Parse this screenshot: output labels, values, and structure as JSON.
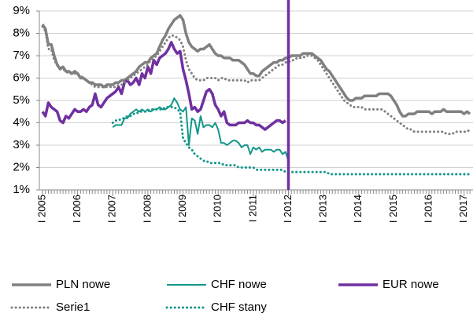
{
  "chart_data": {
    "type": "line",
    "categories": [
      "I 2005",
      null,
      null,
      null,
      null,
      null,
      null,
      null,
      null,
      null,
      null,
      null,
      "I 2006",
      null,
      null,
      null,
      null,
      null,
      null,
      null,
      null,
      null,
      null,
      null,
      "I 2007",
      null,
      null,
      null,
      null,
      null,
      null,
      null,
      null,
      null,
      null,
      null,
      "I 2008",
      null,
      null,
      null,
      null,
      null,
      null,
      null,
      null,
      null,
      null,
      null,
      "I 2009",
      null,
      null,
      null,
      null,
      null,
      null,
      null,
      null,
      null,
      null,
      null,
      "I 2010",
      null,
      null,
      null,
      null,
      null,
      null,
      null,
      null,
      null,
      null,
      null,
      "I 2011",
      null,
      null,
      null,
      null,
      null,
      null,
      null,
      null,
      null,
      null,
      null,
      "I 2012",
      null,
      null,
      null,
      null,
      null,
      null,
      null,
      null,
      null,
      null,
      null,
      "I 2013",
      null,
      null,
      null,
      null,
      null,
      null,
      null,
      null,
      null,
      null,
      null,
      "I 2014",
      null,
      null,
      null,
      null,
      null,
      null,
      null,
      null,
      null,
      null,
      null,
      "I 2015",
      null,
      null,
      null,
      null,
      null,
      null,
      null,
      null,
      null,
      null,
      null,
      "I 2016",
      null,
      null,
      null,
      null,
      null,
      null,
      null,
      null,
      null,
      null,
      null,
      "I 2017",
      null,
      null
    ],
    "series": [
      {
        "name": "PLN nowe",
        "color": "#808080",
        "width": 3.5,
        "style": "solid",
        "values": [
          8.4,
          8.2,
          7.5,
          7.5,
          7.0,
          6.6,
          6.4,
          6.5,
          6.3,
          6.3,
          6.2,
          6.3,
          6.2,
          6.0,
          6.0,
          5.9,
          5.8,
          5.8,
          5.7,
          5.7,
          5.7,
          5.6,
          5.7,
          5.7,
          5.7,
          5.8,
          5.8,
          5.9,
          5.9,
          6.0,
          6.1,
          6.2,
          6.3,
          6.5,
          6.6,
          6.7,
          6.7,
          6.9,
          7.0,
          7.1,
          7.4,
          7.7,
          7.9,
          8.2,
          8.4,
          8.6,
          8.7,
          8.8,
          8.6,
          8.0,
          7.6,
          7.4,
          7.3,
          7.2,
          7.3,
          7.3,
          7.4,
          7.5,
          7.3,
          7.1,
          7.0,
          7.0,
          6.9,
          6.9,
          6.9,
          6.8,
          6.8,
          6.8,
          6.7,
          6.6,
          6.4,
          6.2,
          6.2,
          6.1,
          6.1,
          6.3,
          6.4,
          6.5,
          6.6,
          6.7,
          6.7,
          6.8,
          6.8,
          6.9,
          6.9,
          7.0,
          7.0,
          7.0,
          7.0,
          7.1,
          7.1,
          7.1,
          7.1,
          7.0,
          6.9,
          6.8,
          6.6,
          6.4,
          6.3,
          6.1,
          5.9,
          5.7,
          5.5,
          5.3,
          5.1,
          5.0,
          5.0,
          5.1,
          5.1,
          5.1,
          5.2,
          5.2,
          5.2,
          5.2,
          5.2,
          5.3,
          5.3,
          5.3,
          5.3,
          5.2,
          5.0,
          4.8,
          4.5,
          4.3,
          4.3,
          4.4,
          4.4,
          4.4,
          4.5,
          4.5,
          4.5,
          4.5,
          4.5,
          4.4,
          4.5,
          4.5,
          4.5,
          4.6,
          4.5,
          4.5,
          4.5,
          4.5,
          4.5,
          4.5,
          4.4,
          4.5,
          4.4
        ]
      },
      {
        "name": "CHF nowe",
        "color": "#12978a",
        "width": 2,
        "style": "solid",
        "values": [
          null,
          null,
          null,
          null,
          null,
          null,
          null,
          null,
          null,
          null,
          null,
          null,
          null,
          null,
          null,
          null,
          null,
          null,
          null,
          null,
          null,
          null,
          null,
          null,
          3.8,
          3.9,
          3.9,
          3.9,
          4.2,
          4.2,
          4.4,
          4.5,
          4.6,
          4.5,
          4.6,
          4.5,
          4.6,
          4.5,
          4.6,
          4.6,
          4.7,
          4.6,
          4.6,
          4.7,
          4.8,
          5.1,
          4.9,
          4.6,
          4.5,
          4.7,
          3.0,
          4.2,
          4.1,
          3.5,
          4.3,
          3.8,
          3.9,
          3.9,
          3.8,
          4.0,
          3.7,
          3.1,
          3.1,
          3.0,
          3.1,
          3.2,
          3.2,
          3.1,
          2.9,
          3.0,
          3.0,
          2.6,
          2.9,
          2.8,
          2.9,
          2.7,
          2.8,
          2.8,
          2.8,
          2.7,
          2.8,
          2.8,
          2.6,
          2.7,
          2.3,
          null,
          null,
          null,
          null,
          null,
          null,
          null,
          null,
          null,
          null,
          null,
          null,
          null,
          null,
          null,
          null,
          null,
          null,
          null,
          null,
          null,
          null,
          null,
          null,
          null,
          null,
          null,
          null,
          null,
          null,
          null,
          null,
          null,
          null,
          null,
          null,
          null,
          null,
          null,
          null,
          null,
          null,
          null,
          null,
          null,
          null,
          null,
          null,
          null,
          null,
          null,
          null,
          null,
          null,
          null,
          null,
          null,
          null,
          null,
          null,
          null,
          null
        ]
      },
      {
        "name": "EUR nowe",
        "color": "#7030a0",
        "width": 3.5,
        "style": "solid",
        "values": [
          4.5,
          4.3,
          4.9,
          4.7,
          4.6,
          4.5,
          4.1,
          4.0,
          4.3,
          4.2,
          4.4,
          4.6,
          4.5,
          4.5,
          4.6,
          4.5,
          4.7,
          4.8,
          5.3,
          4.8,
          4.7,
          4.9,
          5.1,
          5.2,
          5.3,
          5.4,
          5.6,
          5.3,
          5.8,
          5.9,
          5.7,
          5.8,
          6.0,
          5.7,
          6.2,
          6.0,
          6.5,
          6.2,
          6.8,
          6.6,
          6.9,
          7.0,
          7.1,
          7.3,
          7.6,
          7.3,
          7.1,
          7.2,
          6.4,
          5.9,
          5.3,
          4.6,
          4.7,
          4.5,
          4.6,
          5.0,
          5.4,
          5.5,
          5.3,
          4.8,
          4.6,
          4.3,
          4.5,
          4.0,
          3.9,
          3.9,
          3.9,
          4.0,
          4.0,
          4.0,
          4.1,
          4.0,
          4.0,
          3.9,
          3.9,
          3.8,
          3.7,
          3.8,
          3.9,
          4.0,
          4.1,
          4.1,
          4.0,
          4.1,
          null,
          null,
          null,
          null,
          null,
          null,
          null,
          null,
          null,
          null,
          null,
          null,
          null,
          null,
          null,
          null,
          null,
          null,
          null,
          null,
          null,
          null,
          null,
          null,
          null,
          null,
          null,
          null,
          null,
          null,
          null,
          null,
          null,
          null,
          null,
          null,
          null,
          null,
          null,
          null,
          null,
          null,
          null,
          null,
          null,
          null,
          null,
          null,
          null,
          null,
          null,
          null,
          null,
          null,
          null,
          null,
          null,
          null,
          null,
          null,
          null,
          null,
          null
        ]
      },
      {
        "name": "Serie1",
        "color": "#808080",
        "width": 3,
        "style": "dotted",
        "values": [
          8.3,
          8.1,
          7.3,
          7.3,
          6.8,
          6.6,
          6.5,
          6.4,
          6.3,
          6.2,
          6.2,
          6.2,
          6.2,
          6.1,
          6.0,
          5.9,
          5.8,
          5.7,
          5.6,
          5.6,
          5.6,
          5.6,
          5.6,
          5.6,
          5.6,
          5.6,
          5.7,
          5.7,
          5.8,
          5.9,
          6.0,
          6.1,
          6.2,
          6.3,
          6.4,
          6.5,
          6.6,
          6.8,
          6.9,
          7.0,
          7.2,
          7.4,
          7.6,
          7.8,
          7.9,
          7.9,
          7.8,
          7.7,
          7.4,
          6.8,
          6.4,
          6.2,
          6.0,
          5.9,
          5.9,
          5.9,
          6.0,
          6.0,
          6.0,
          6.0,
          5.9,
          6.0,
          6.0,
          5.9,
          5.9,
          5.9,
          5.9,
          5.9,
          5.9,
          5.9,
          5.8,
          5.9,
          5.9,
          5.9,
          5.9,
          6.0,
          6.1,
          6.2,
          6.3,
          6.4,
          6.5,
          6.6,
          6.6,
          6.7,
          6.7,
          6.8,
          6.8,
          6.9,
          6.9,
          6.9,
          7.0,
          7.0,
          7.0,
          6.9,
          6.8,
          6.6,
          6.4,
          6.2,
          6.0,
          5.8,
          5.6,
          5.4,
          5.2,
          5.0,
          4.9,
          4.8,
          4.7,
          4.7,
          4.7,
          4.7,
          4.6,
          4.6,
          4.6,
          4.6,
          4.6,
          4.6,
          4.6,
          4.5,
          4.4,
          4.3,
          4.2,
          4.1,
          4.0,
          3.9,
          3.8,
          3.7,
          3.7,
          3.6,
          3.6,
          3.6,
          3.6,
          3.6,
          3.6,
          3.6,
          3.6,
          3.6,
          3.6,
          3.6,
          3.5,
          3.5,
          3.5,
          3.6,
          3.6,
          3.6,
          3.6,
          3.6,
          3.7
        ]
      },
      {
        "name": "CHF stany",
        "color": "#12978a",
        "width": 3,
        "style": "dotted",
        "values": [
          null,
          null,
          null,
          null,
          null,
          null,
          null,
          null,
          null,
          null,
          null,
          null,
          null,
          null,
          null,
          null,
          null,
          null,
          null,
          null,
          null,
          null,
          null,
          null,
          4.0,
          4.1,
          4.1,
          4.2,
          4.2,
          4.3,
          4.3,
          4.4,
          4.4,
          4.5,
          4.5,
          4.5,
          4.5,
          4.6,
          4.6,
          4.6,
          4.6,
          4.6,
          4.7,
          4.7,
          4.7,
          4.7,
          4.6,
          4.5,
          3.3,
          3.1,
          2.9,
          2.8,
          2.6,
          2.5,
          2.4,
          2.3,
          2.3,
          2.2,
          2.2,
          2.2,
          2.2,
          2.2,
          2.1,
          2.1,
          2.1,
          2.1,
          2.1,
          2.0,
          2.0,
          2.0,
          2.0,
          2.0,
          2.0,
          1.9,
          1.9,
          1.9,
          1.9,
          1.9,
          1.9,
          1.9,
          1.9,
          1.9,
          1.9,
          1.8,
          1.8,
          1.8,
          1.8,
          1.8,
          1.8,
          1.8,
          1.8,
          1.8,
          1.8,
          1.8,
          1.8,
          1.8,
          1.8,
          1.8,
          1.7,
          1.7,
          1.7,
          1.7,
          1.7,
          1.7,
          1.7,
          1.7,
          1.7,
          1.7,
          1.7,
          1.7,
          1.7,
          1.7,
          1.7,
          1.7,
          1.7,
          1.7,
          1.7,
          1.7,
          1.7,
          1.7,
          1.7,
          1.7,
          1.7,
          1.7,
          1.7,
          1.7,
          1.7,
          1.7,
          1.7,
          1.7,
          1.7,
          1.7,
          1.7,
          1.7,
          1.7,
          1.7,
          1.7,
          1.7,
          1.7,
          1.7,
          1.7,
          1.7,
          1.7,
          1.7,
          1.7,
          1.7,
          1.7
        ]
      }
    ],
    "ylim": [
      1,
      9
    ],
    "yticks": [
      {
        "value": 1,
        "label": "1%"
      },
      {
        "value": 2,
        "label": "2%"
      },
      {
        "value": 3,
        "label": "3%"
      },
      {
        "value": 4,
        "label": "4%"
      },
      {
        "value": 5,
        "label": "5%"
      },
      {
        "value": 6,
        "label": "6%"
      },
      {
        "value": 7,
        "label": "7%"
      },
      {
        "value": 8,
        "label": "8%"
      },
      {
        "value": 9,
        "label": "9%"
      }
    ],
    "grid": true,
    "legend": "bottom"
  }
}
